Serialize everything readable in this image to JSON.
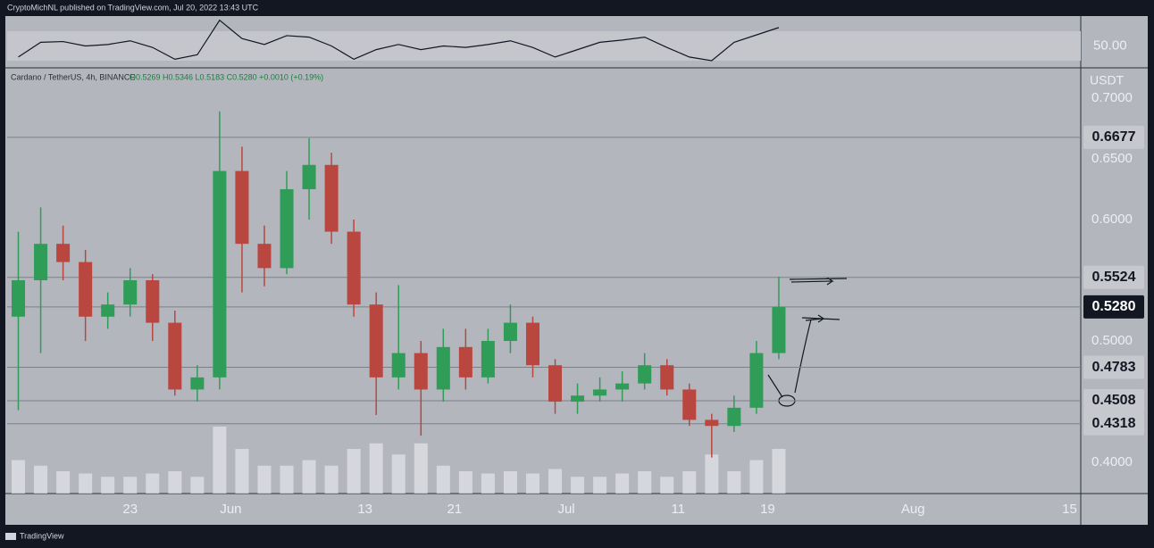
{
  "page": {
    "published": "CryptoMichNL published on TradingView.com, Jul 20, 2022 13:43 UTC",
    "brand": "TradingView"
  },
  "chart_data": [
    {
      "type": "candlestick",
      "title": "Cardano / TetherUS, 4h, BINANCE",
      "subtitle": "O0.5269 H0.5346 L0.5183 C0.5280 +0.0010 (+0.19%)",
      "y_label": "USDT",
      "x": [
        "2022-05-13",
        "2022-05-15",
        "2022-05-17",
        "2022-05-19",
        "2022-05-21",
        "2022-05-23",
        "2022-05-25",
        "2022-05-27",
        "2022-05-29",
        "2022-05-31",
        "2022-06-02",
        "2022-06-04",
        "2022-06-06",
        "2022-06-08",
        "2022-06-10",
        "2022-06-12",
        "2022-06-14",
        "2022-06-16",
        "2022-06-18",
        "2022-06-20",
        "2022-06-22",
        "2022-06-24",
        "2022-06-26",
        "2022-06-28",
        "2022-06-30",
        "2022-07-02",
        "2022-07-04",
        "2022-07-06",
        "2022-07-08",
        "2022-07-10",
        "2022-07-12",
        "2022-07-14",
        "2022-07-16",
        "2022-07-18",
        "2022-07-20"
      ],
      "open": [
        0.52,
        0.55,
        0.58,
        0.565,
        0.52,
        0.53,
        0.55,
        0.515,
        0.46,
        0.47,
        0.64,
        0.58,
        0.56,
        0.625,
        0.645,
        0.59,
        0.53,
        0.47,
        0.49,
        0.46,
        0.495,
        0.47,
        0.5,
        0.515,
        0.48,
        0.45,
        0.455,
        0.46,
        0.465,
        0.48,
        0.46,
        0.435,
        0.43,
        0.445,
        0.49
      ],
      "high": [
        0.59,
        0.61,
        0.595,
        0.575,
        0.54,
        0.56,
        0.555,
        0.525,
        0.48,
        0.689,
        0.66,
        0.595,
        0.64,
        0.667,
        0.655,
        0.6,
        0.54,
        0.546,
        0.5,
        0.51,
        0.51,
        0.51,
        0.53,
        0.52,
        0.485,
        0.465,
        0.47,
        0.475,
        0.49,
        0.485,
        0.465,
        0.44,
        0.455,
        0.5,
        0.553
      ],
      "low": [
        0.443,
        0.49,
        0.55,
        0.5,
        0.51,
        0.52,
        0.5,
        0.455,
        0.45,
        0.46,
        0.54,
        0.545,
        0.555,
        0.6,
        0.58,
        0.52,
        0.439,
        0.46,
        0.422,
        0.45,
        0.46,
        0.465,
        0.49,
        0.47,
        0.44,
        0.44,
        0.45,
        0.45,
        0.46,
        0.455,
        0.43,
        0.404,
        0.425,
        0.44,
        0.485
      ],
      "close": [
        0.55,
        0.58,
        0.565,
        0.52,
        0.53,
        0.55,
        0.515,
        0.46,
        0.47,
        0.64,
        0.58,
        0.56,
        0.625,
        0.645,
        0.59,
        0.53,
        0.47,
        0.49,
        0.46,
        0.495,
        0.47,
        0.5,
        0.515,
        0.48,
        0.45,
        0.455,
        0.46,
        0.465,
        0.48,
        0.46,
        0.435,
        0.43,
        0.445,
        0.49,
        0.528
      ],
      "volume": [
        30,
        25,
        20,
        18,
        15,
        15,
        18,
        20,
        15,
        60,
        40,
        25,
        25,
        30,
        25,
        40,
        45,
        35,
        45,
        25,
        20,
        18,
        20,
        18,
        22,
        15,
        15,
        18,
        20,
        15,
        20,
        35,
        20,
        30,
        40
      ],
      "up_color": "#2f9d57",
      "down_color": "#b9473f",
      "volume_color": "#e4e6ea",
      "xlim": [
        "2022-05-12",
        "2022-08-16"
      ],
      "xticks": [
        {
          "value": "2022-05-23",
          "label": "23"
        },
        {
          "value": "2022-06-01",
          "label": "Jun"
        },
        {
          "value": "2022-06-13",
          "label": "13"
        },
        {
          "value": "2022-06-21",
          "label": "21"
        },
        {
          "value": "2022-07-01",
          "label": "Jul"
        },
        {
          "value": "2022-07-11",
          "label": "11"
        },
        {
          "value": "2022-07-19",
          "label": "19"
        },
        {
          "value": "2022-08-01",
          "label": "Aug"
        },
        {
          "value": "2022-08-15",
          "label": "15"
        }
      ],
      "ylim": [
        0.3743,
        0.7235
      ],
      "yticks": [
        {
          "value": 0.4,
          "label": "0.4000"
        },
        {
          "value": 0.5,
          "label": "0.5000"
        },
        {
          "value": 0.6,
          "label": "0.6000"
        },
        {
          "value": 0.65,
          "label": "0.6500"
        },
        {
          "value": 0.7,
          "label": "0.7000"
        }
      ],
      "levels": [
        {
          "value": 0.6677,
          "label": "0.6677"
        },
        {
          "value": 0.5524,
          "label": "0.5524"
        },
        {
          "value": 0.4783,
          "label": "0.4783"
        },
        {
          "value": 0.4508,
          "label": "0.4508"
        },
        {
          "value": 0.4318,
          "label": "0.4318"
        }
      ],
      "last": {
        "value": 0.528,
        "label": "0.5280"
      },
      "grid": false
    },
    {
      "type": "line",
      "values": [
        35,
        55,
        56,
        50,
        52,
        57,
        48,
        32,
        38,
        85,
        60,
        52,
        64,
        62,
        50,
        32,
        45,
        52,
        45,
        50,
        48,
        52,
        57,
        48,
        35,
        45,
        55,
        58,
        62,
        48,
        35,
        30,
        55,
        65,
        75
      ],
      "color": "#131722",
      "band": [
        30,
        70
      ],
      "ylim": [
        20.3,
        90.6
      ],
      "yticks": [
        {
          "value": 50,
          "label": "50.00"
        }
      ]
    }
  ]
}
